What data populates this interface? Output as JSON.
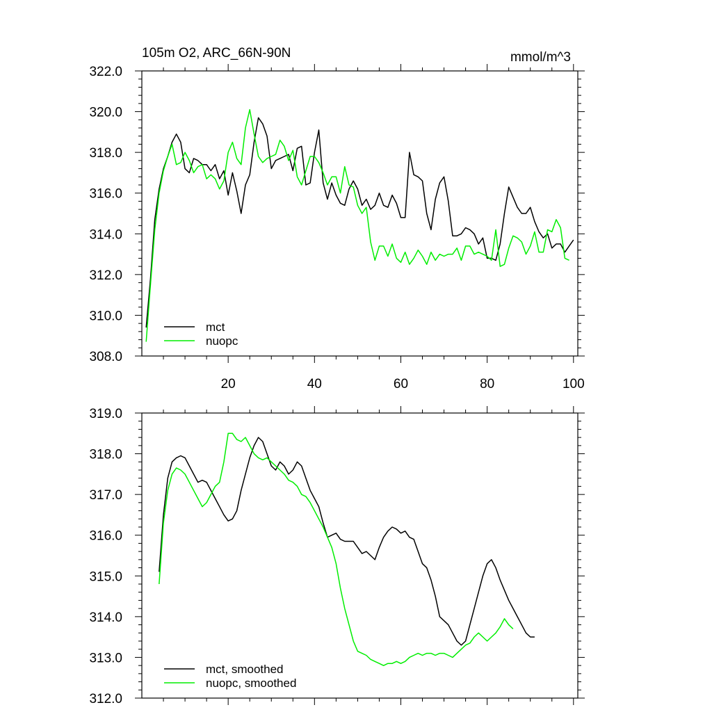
{
  "chart_data": [
    {
      "type": "line",
      "title_left": "105m O2, ARC_66N-90N",
      "title_right": "mmol/m^3",
      "xlim": [
        0,
        101
      ],
      "ylim": [
        308.0,
        322.0
      ],
      "xticks": [
        20,
        40,
        60,
        80,
        100
      ],
      "xtick_labels": [
        "20",
        "40",
        "60",
        "80",
        "100"
      ],
      "yticks": [
        308,
        310,
        312,
        314,
        316,
        318,
        320,
        322
      ],
      "ytick_labels": [
        "308.0",
        "310.0",
        "312.0",
        "314.0",
        "316.0",
        "318.0",
        "320.0",
        "322.0"
      ],
      "legend_position": "bottom-left",
      "series": [
        {
          "name": "mct",
          "color": "#000000",
          "x_start": 1,
          "values": [
            309.4,
            311.8,
            314.7,
            316.2,
            317.2,
            317.8,
            318.5,
            318.9,
            318.5,
            317.2,
            317.0,
            317.7,
            317.6,
            317.4,
            317.4,
            317.1,
            317.4,
            316.7,
            317.1,
            315.9,
            317.0,
            316.1,
            315.0,
            316.4,
            316.9,
            318.5,
            319.7,
            319.4,
            318.8,
            317.2,
            317.6,
            317.7,
            317.8,
            317.9,
            317.1,
            318.2,
            318.3,
            316.4,
            316.5,
            318.0,
            319.1,
            316.5,
            315.7,
            316.5,
            315.9,
            315.5,
            315.4,
            316.2,
            316.6,
            316.2,
            315.4,
            315.7,
            315.2,
            315.4,
            316.0,
            315.4,
            315.3,
            315.9,
            315.5,
            314.8,
            314.8,
            318.0,
            316.9,
            316.8,
            316.6,
            315.0,
            314.2,
            315.7,
            316.5,
            316.8,
            315.6,
            313.9,
            313.9,
            314.0,
            314.3,
            314.2,
            314.0,
            313.5,
            313.8,
            312.8,
            312.8,
            312.7,
            313.5,
            315.0,
            316.3,
            315.8,
            315.3,
            315.0,
            315.0,
            315.3,
            314.6,
            314.1,
            313.8,
            314.0,
            313.3,
            313.5,
            313.5,
            313.1,
            313.4,
            313.7
          ]
        },
        {
          "name": "nuopc",
          "color": "#00ee00",
          "x_start": 1,
          "values": [
            308.7,
            311.5,
            314.2,
            316.0,
            317.1,
            317.8,
            318.4,
            317.4,
            317.5,
            318.0,
            317.6,
            317.0,
            317.3,
            317.4,
            316.7,
            316.9,
            316.7,
            316.2,
            316.6,
            318.0,
            318.5,
            317.7,
            317.4,
            319.2,
            320.1,
            318.9,
            317.8,
            317.5,
            317.7,
            317.8,
            317.9,
            318.6,
            318.3,
            317.6,
            318.1,
            316.8,
            316.4,
            317.1,
            317.8,
            317.8,
            317.5,
            317.0,
            316.4,
            316.8,
            316.8,
            316.0,
            317.3,
            316.4,
            316.3,
            315.4,
            315.0,
            315.3,
            313.6,
            312.7,
            313.4,
            313.4,
            312.9,
            313.5,
            312.8,
            312.6,
            313.1,
            312.5,
            312.8,
            313.2,
            312.9,
            312.5,
            313.1,
            312.7,
            313.0,
            312.9,
            313.0,
            313.0,
            313.3,
            312.7,
            313.4,
            313.4,
            313.0,
            313.1,
            313.0,
            312.9,
            312.7,
            314.2,
            312.4,
            312.5,
            313.3,
            313.9,
            313.8,
            313.6,
            313.0,
            313.4,
            314.1,
            313.1,
            313.1,
            314.2,
            314.1,
            314.7,
            314.3,
            312.8,
            312.7
          ]
        }
      ]
    },
    {
      "type": "line",
      "title_left": "",
      "title_right": "",
      "xlim": [
        0,
        101
      ],
      "ylim": [
        312.0,
        319.0
      ],
      "xticks": [
        20,
        40,
        60,
        80,
        100
      ],
      "xtick_labels": [],
      "yticks": [
        312,
        313,
        314,
        315,
        316,
        317,
        318,
        319
      ],
      "ytick_labels": [
        "312.0",
        "313.0",
        "314.0",
        "315.0",
        "316.0",
        "317.0",
        "318.0",
        "319.0"
      ],
      "legend_position": "bottom-left",
      "series": [
        {
          "name": "mct, smoothed",
          "color": "#000000",
          "x_start": 4,
          "values": [
            315.1,
            316.5,
            317.4,
            317.8,
            317.9,
            317.95,
            317.9,
            317.7,
            317.5,
            317.3,
            317.35,
            317.3,
            317.1,
            316.9,
            316.7,
            316.5,
            316.35,
            316.4,
            316.6,
            317.1,
            317.5,
            317.9,
            318.2,
            318.4,
            318.3,
            318.0,
            317.7,
            317.6,
            317.8,
            317.7,
            317.5,
            317.6,
            317.8,
            317.7,
            317.4,
            317.1,
            316.9,
            316.7,
            316.3,
            315.95,
            316.0,
            316.05,
            315.9,
            315.85,
            315.85,
            315.85,
            315.7,
            315.55,
            315.6,
            315.5,
            315.4,
            315.7,
            315.95,
            316.1,
            316.2,
            316.15,
            316.05,
            316.1,
            315.95,
            315.9,
            315.6,
            315.3,
            315.2,
            314.9,
            314.5,
            314.0,
            313.9,
            313.8,
            313.6,
            313.4,
            313.3,
            313.4,
            313.8,
            314.2,
            314.6,
            315.0,
            315.3,
            315.4,
            315.2,
            314.9,
            314.65,
            314.4,
            314.2,
            314.0,
            313.8,
            313.6,
            313.5,
            313.5
          ]
        },
        {
          "name": "nuopc, smoothed",
          "color": "#00ee00",
          "x_start": 4,
          "values": [
            314.8,
            316.3,
            317.1,
            317.5,
            317.65,
            317.6,
            317.5,
            317.3,
            317.1,
            316.9,
            316.7,
            316.8,
            317.0,
            317.2,
            317.3,
            317.8,
            318.5,
            318.5,
            318.35,
            318.3,
            318.4,
            318.2,
            318.0,
            317.9,
            317.85,
            317.9,
            317.8,
            317.7,
            317.6,
            317.5,
            317.35,
            317.3,
            317.2,
            317.0,
            316.95,
            316.8,
            316.6,
            316.4,
            316.2,
            315.95,
            315.7,
            315.3,
            314.7,
            314.2,
            313.8,
            313.4,
            313.15,
            313.1,
            313.05,
            312.95,
            312.9,
            312.85,
            312.8,
            312.85,
            312.85,
            312.9,
            312.85,
            312.9,
            313.0,
            313.05,
            313.1,
            313.05,
            313.1,
            313.1,
            313.05,
            313.1,
            313.1,
            313.05,
            313.0,
            313.1,
            313.2,
            313.3,
            313.35,
            313.5,
            313.6,
            313.5,
            313.4,
            313.5,
            313.6,
            313.75,
            313.95,
            313.8,
            313.7
          ]
        }
      ]
    }
  ]
}
